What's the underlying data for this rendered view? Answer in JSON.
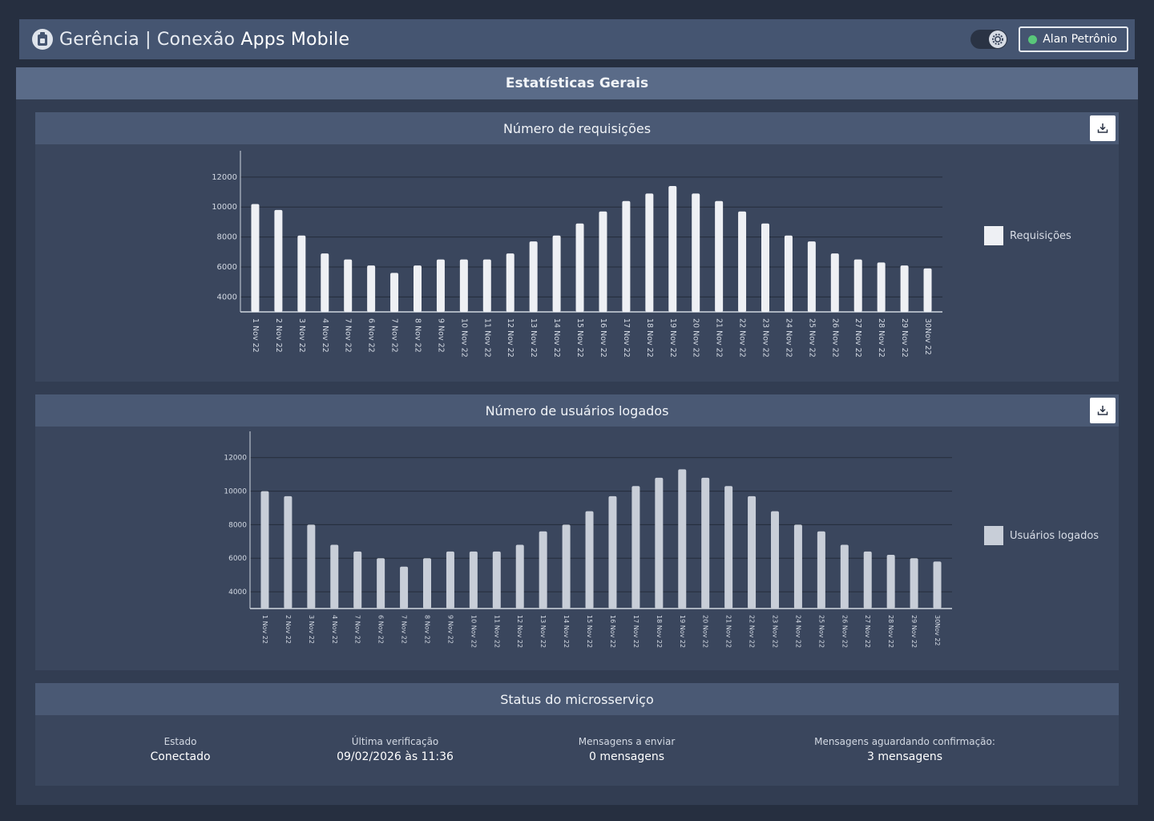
{
  "header": {
    "title_prefix": "Gerência | Conexão ",
    "title_strong": "Apps Mobile",
    "user_name": "Alan Petrônio",
    "user_status_color": "#59c77a"
  },
  "main": {
    "title": "Estatísticas Gerais"
  },
  "charts": [
    {
      "card_title": "Número de requisições",
      "chart_data": {
        "type": "bar",
        "categories": [
          "1 Nov 22",
          "2 Nov 22",
          "3 Nov 22",
          "4 Nov 22",
          "7 Nov 22",
          "6 Nov 22",
          "7 Nov 22",
          "8 Nov 22",
          "9 Nov 22",
          "10 Nov 22",
          "11 Nov 22",
          "12 Nov 22",
          "13 Nov 22",
          "14 Nov 22",
          "15 Nov 22",
          "16 Nov 22",
          "17 Nov 22",
          "18 Nov 22",
          "19 Nov 22",
          "20 Nov 22",
          "21 Nov 22",
          "22 Nov 22",
          "23 Nov 22",
          "24 Nov 22",
          "25 Nov 22",
          "26 Nov 22",
          "27 Nov 22",
          "28 Nov 22",
          "29 Nov 22",
          "30Nov 22"
        ],
        "series": [
          {
            "name": "Requisições",
            "color": "#eef0f4",
            "values": [
              10200,
              9800,
              8100,
              6900,
              6500,
              6100,
              5600,
              6100,
              6500,
              6500,
              6500,
              6900,
              7700,
              8100,
              8900,
              9700,
              10400,
              10900,
              11400,
              10900,
              10400,
              9700,
              8900,
              8100,
              7700,
              6900,
              6500,
              6300,
              6100,
              5900
            ]
          }
        ],
        "yticks": [
          4000,
          6000,
          8000,
          10000,
          12000
        ],
        "ylim": [
          3000,
          12900
        ],
        "grid": true,
        "legend_position": "right"
      }
    },
    {
      "card_title": "Número de usuários logados",
      "chart_data": {
        "type": "bar",
        "categories": [
          "1 Nov 22",
          "2 Nov 22",
          "3 Nov 22",
          "4 Nov 22",
          "7 Nov 22",
          "6 Nov 22",
          "7 Nov 22",
          "8 Nov 22",
          "9 Nov 22",
          "10 Nov 22",
          "11 Nov 22",
          "12 Nov 22",
          "13 Nov 22",
          "14 Nov 22",
          "15 Nov 22",
          "16 Nov 22",
          "17 Nov 22",
          "18 Nov 22",
          "19 Nov 22",
          "20 Nov 22",
          "21 Nov 22",
          "22 Nov 22",
          "23 Nov 22",
          "24 Nov 22",
          "25 Nov 22",
          "26 Nov 22",
          "27 Nov 22",
          "28 Nov 22",
          "29 Nov 22",
          "30Nov 22"
        ],
        "series": [
          {
            "name": "Usuários logados",
            "color": "#c8ced8",
            "values": [
              10000,
              9700,
              8000,
              6800,
              6400,
              6000,
              5500,
              6000,
              6400,
              6400,
              6400,
              6800,
              7600,
              8000,
              8800,
              9700,
              10300,
              10800,
              11300,
              10800,
              10300,
              9700,
              8800,
              8000,
              7600,
              6800,
              6400,
              6200,
              6000,
              5800
            ]
          }
        ],
        "yticks": [
          4000,
          6000,
          8000,
          10000,
          12000
        ],
        "ylim": [
          3000,
          12800
        ],
        "grid": true,
        "legend_position": "right"
      }
    }
  ],
  "status": {
    "title": "Status do microsserviço",
    "items": [
      {
        "label": "Estado",
        "value": "Conectado"
      },
      {
        "label": "Última verificação",
        "value": "09/02/2026 às 11:36"
      },
      {
        "label": "Mensagens a enviar",
        "value": "0 mensagens"
      },
      {
        "label": "Mensagens aguardando confirmação:",
        "value": "3 mensagens"
      }
    ]
  },
  "icons": {
    "app": "mobile-app-icon",
    "theme_toggle": "gear-icon",
    "download": "download-icon"
  }
}
